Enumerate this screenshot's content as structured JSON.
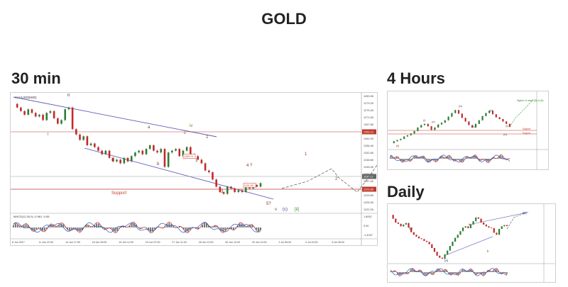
{
  "page": {
    "title": "GOLD",
    "headings": {
      "min30": "30 min",
      "h4": "4 Hours",
      "daily": "Daily"
    }
  },
  "chart_data": [
    {
      "type": "line",
      "title": "30 min",
      "symbol": "XAUUSD(M30)",
      "y_ticks": [
        "1283.98",
        "1279.28",
        "1275.48",
        "1271.68",
        "1267.88",
        "1264.08",
        "1260.28",
        "1256.48",
        "1252.68",
        "1248.88",
        "1245.08",
        "1241.28",
        "1237.48",
        "1233.68",
        "1229.88",
        "1226.08",
        "1222.28"
      ],
      "price_tags": [
        {
          "label": "1259.13",
          "color": "#c0392b"
        },
        {
          "label": "1235.17",
          "color": "#666666"
        },
        {
          "label": "1229.88",
          "color": "#c0392b"
        }
      ],
      "x_ticks": [
        "8 Jun 2017",
        "11 Jun 22:00",
        "14 Jun 17:00",
        "18 Jun 05:00",
        "19 Jun 12:00",
        "23 Jun 07:00",
        "27 Jun 11:00",
        "28 Jun 12:00",
        "30 Jun 12:00",
        "29 Jun 12:00",
        "2 Jul 06:00",
        "4 Jul 10:00",
        "6 Jul 05:00"
      ],
      "macd_label": "MACD(12,26,9) -0.961 -0.65",
      "macd_ticks": [
        "1.6052",
        "0.00",
        "-1.4037"
      ],
      "inline_values": [
        "1250.79",
        "1231.56"
      ],
      "series": [
        {
          "values": [
            1282,
            1280,
            1278,
            1276,
            1279,
            1277,
            1275,
            1276,
            1273,
            1277,
            1278,
            1274,
            1271,
            1273,
            1279,
            1280,
            1268,
            1265,
            1262,
            1264,
            1259,
            1260,
            1258,
            1256,
            1254,
            1256,
            1252,
            1250,
            1251,
            1249,
            1252,
            1250,
            1253,
            1255,
            1256,
            1254,
            1257,
            1259,
            1256,
            1255,
            1257,
            1247,
            1255,
            1256,
            1257,
            1253,
            1256,
            1258,
            1254,
            1253,
            1251,
            1249,
            1245,
            1244,
            1240,
            1236,
            1233,
            1232,
            1236,
            1235,
            1233,
            1234,
            1233,
            1236,
            1235,
            1237,
            1236,
            1238
          ]
        }
      ],
      "projection": [
        1235,
        1239,
        1246,
        1241,
        1233,
        1240,
        1248
      ],
      "wave_labels": [
        "ii",
        "i",
        "iii",
        "iv",
        "a",
        "b",
        "c",
        "1",
        "2",
        "3",
        "4 ?",
        "5?",
        "v",
        "(c)",
        "[ii]",
        "1",
        "2"
      ],
      "support_label": "Support"
    },
    {
      "type": "line",
      "title": "4 Hours",
      "annotation": "Higher in wave [iii] or [b]",
      "wave_labels": [
        "(ii)",
        "(iii)",
        "(a)",
        "(b)",
        "(c)",
        "(i)",
        "(c)",
        "(iv)"
      ],
      "level_labels": [
        "Support",
        "Support"
      ],
      "series": [
        {
          "values": [
            1236,
            1239,
            1241,
            1243,
            1247,
            1249,
            1252,
            1256,
            1262,
            1266,
            1268,
            1264,
            1258,
            1262,
            1267,
            1270,
            1274,
            1280,
            1286,
            1291,
            1285,
            1278,
            1272,
            1266,
            1262,
            1268,
            1274,
            1281,
            1286,
            1290,
            1284,
            1279,
            1276,
            1272,
            1268,
            1263
          ]
        }
      ],
      "projection": [
        1263,
        1278,
        1292,
        1310
      ]
    },
    {
      "type": "line",
      "title": "Daily",
      "wave_labels": [
        "(a)",
        "(b)",
        "a",
        "b",
        "(B)"
      ],
      "series": [
        {
          "values": [
            1300,
            1285,
            1270,
            1265,
            1255,
            1262,
            1268,
            1250,
            1232,
            1222,
            1215,
            1208,
            1205,
            1198,
            1194,
            1185,
            1170,
            1155,
            1140,
            1132,
            1128,
            1145,
            1160,
            1178,
            1195,
            1210,
            1222,
            1236,
            1250,
            1255,
            1248,
            1262,
            1275,
            1290,
            1285,
            1270,
            1262,
            1255,
            1250,
            1248,
            1230,
            1222,
            1245,
            1255,
            1260,
            1256
          ]
        }
      ],
      "projection": [
        1245,
        1290,
        1310
      ]
    }
  ]
}
